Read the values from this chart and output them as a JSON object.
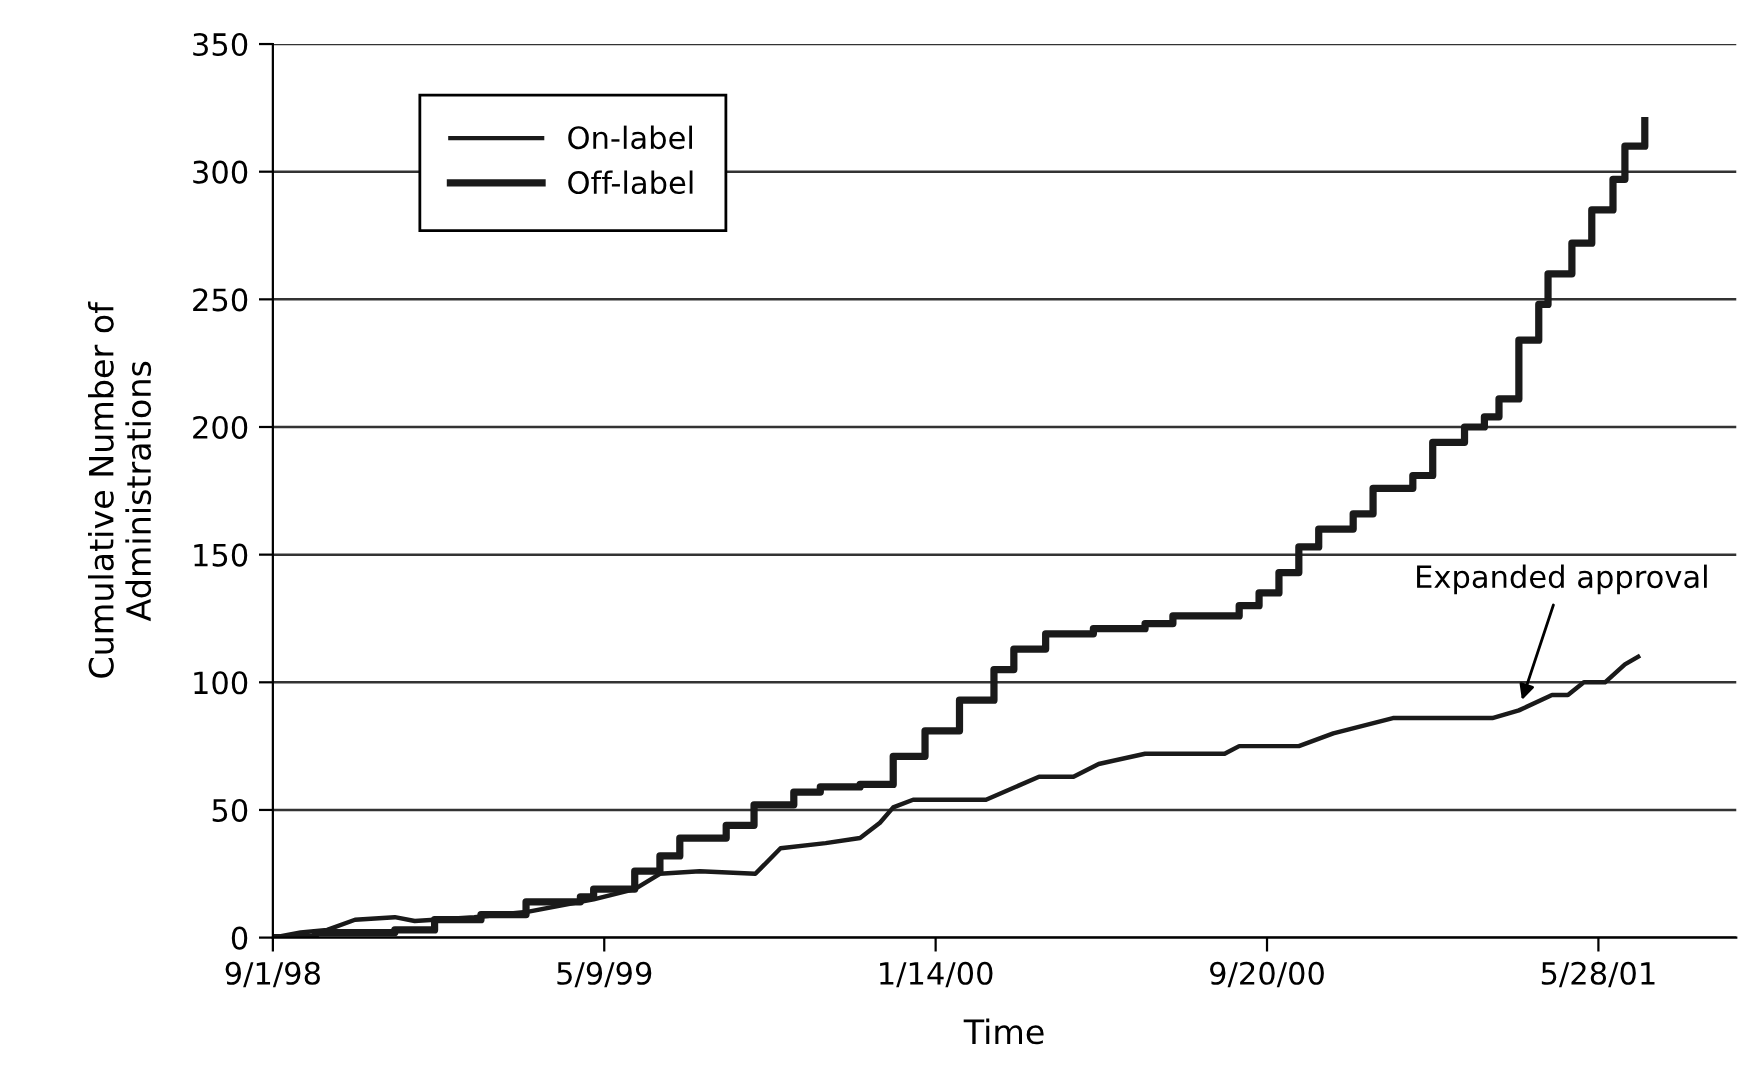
{
  "chart_data": {
    "type": "line",
    "xlabel": "Time",
    "ylabel": "Cumulative Number of\nAdministrations",
    "xlim": [
      "1998-09-01",
      "2001-09-09"
    ],
    "ylim": [
      0,
      350
    ],
    "yticks": [
      0,
      50,
      100,
      150,
      200,
      250,
      300,
      350
    ],
    "xticks": [
      {
        "value": "1998-09-01",
        "label": "9/1/98"
      },
      {
        "value": "1999-05-09",
        "label": "5/9/99"
      },
      {
        "value": "2000-01-14",
        "label": "1/14/00"
      },
      {
        "value": "2000-09-20",
        "label": "9/20/00"
      },
      {
        "value": "2001-05-28",
        "label": "5/28/01"
      }
    ],
    "grid": "y",
    "legend": "top left",
    "marker": "none",
    "line_style": "solid",
    "annotations": [
      {
        "text": "Expanded approval",
        "x": "2001-03-30",
        "y": 91
      }
    ],
    "series": [
      {
        "name": "On-label",
        "color": "#1a1a1a",
        "x": [
          "1998-09-01",
          "1998-09-22",
          "1998-10-12",
          "1998-11-02",
          "1998-12-02",
          "1998-12-17",
          "1999-01-01",
          "1999-01-31",
          "1999-03-11",
          "1999-05-01",
          "1999-06-01",
          "1999-06-20",
          "1999-07-20",
          "1999-08-31",
          "1999-09-19",
          "1999-10-23",
          "1999-11-18",
          "1999-12-03",
          "1999-12-13",
          "1999-12-28",
          "2000-02-21",
          "2000-04-01",
          "2000-04-27",
          "2000-05-16",
          "2000-06-20",
          "2000-08-19",
          "2000-08-30",
          "2000-10-14",
          "2000-11-09",
          "2000-12-24",
          "2001-03-09",
          "2001-03-29",
          "2001-04-23",
          "2001-05-05",
          "2001-05-17",
          "2001-06-02",
          "2001-06-17",
          "2001-06-27"
        ],
        "values": [
          0,
          2,
          3,
          7,
          8,
          6.5,
          7,
          8,
          10,
          15,
          19,
          25,
          26,
          25,
          35,
          37,
          39,
          45,
          51,
          54,
          54,
          63,
          63,
          68,
          72,
          72,
          75,
          75,
          80,
          86,
          86,
          89,
          95,
          95,
          100,
          100,
          107,
          110
        ]
      },
      {
        "name": "Off-label",
        "type": "step",
        "color": "#1a1a1a",
        "x": [
          "1998-09-01",
          "1998-10-03",
          "1998-10-27",
          "1998-12-02",
          "1999-01-01",
          "1999-02-05",
          "1999-03-11",
          "1999-04-21",
          "1999-05-01",
          "1999-06-01",
          "1999-06-20",
          "1999-07-05",
          "1999-08-09",
          "1999-08-30",
          "1999-09-29",
          "1999-10-19",
          "1999-11-18",
          "1999-12-13",
          "2000-01-06",
          "2000-02-01",
          "2000-02-27",
          "2000-03-13",
          "2000-04-06",
          "2000-05-12",
          "2000-06-20",
          "2000-07-11",
          "2000-08-10",
          "2000-08-30",
          "2000-09-14",
          "2000-09-29",
          "2000-10-14",
          "2000-10-29",
          "2000-11-24",
          "2000-12-09",
          "2001-01-08",
          "2001-01-23",
          "2001-02-16",
          "2001-03-03",
          "2001-03-14",
          "2001-03-29",
          "2001-04-13",
          "2001-04-20",
          "2001-05-08",
          "2001-05-23",
          "2001-06-08",
          "2001-06-17",
          "2001-07-02"
        ],
        "values": [
          0,
          2,
          2,
          3,
          7,
          9,
          14,
          16,
          19,
          26,
          32,
          39,
          44,
          52,
          57,
          59,
          60,
          71,
          81,
          93,
          105,
          113,
          119,
          121,
          123,
          126,
          126,
          130,
          135,
          143,
          153,
          160,
          166,
          176,
          181,
          194,
          200,
          204,
          211,
          234,
          248,
          260,
          272,
          285,
          297,
          310,
          320
        ]
      }
    ]
  }
}
